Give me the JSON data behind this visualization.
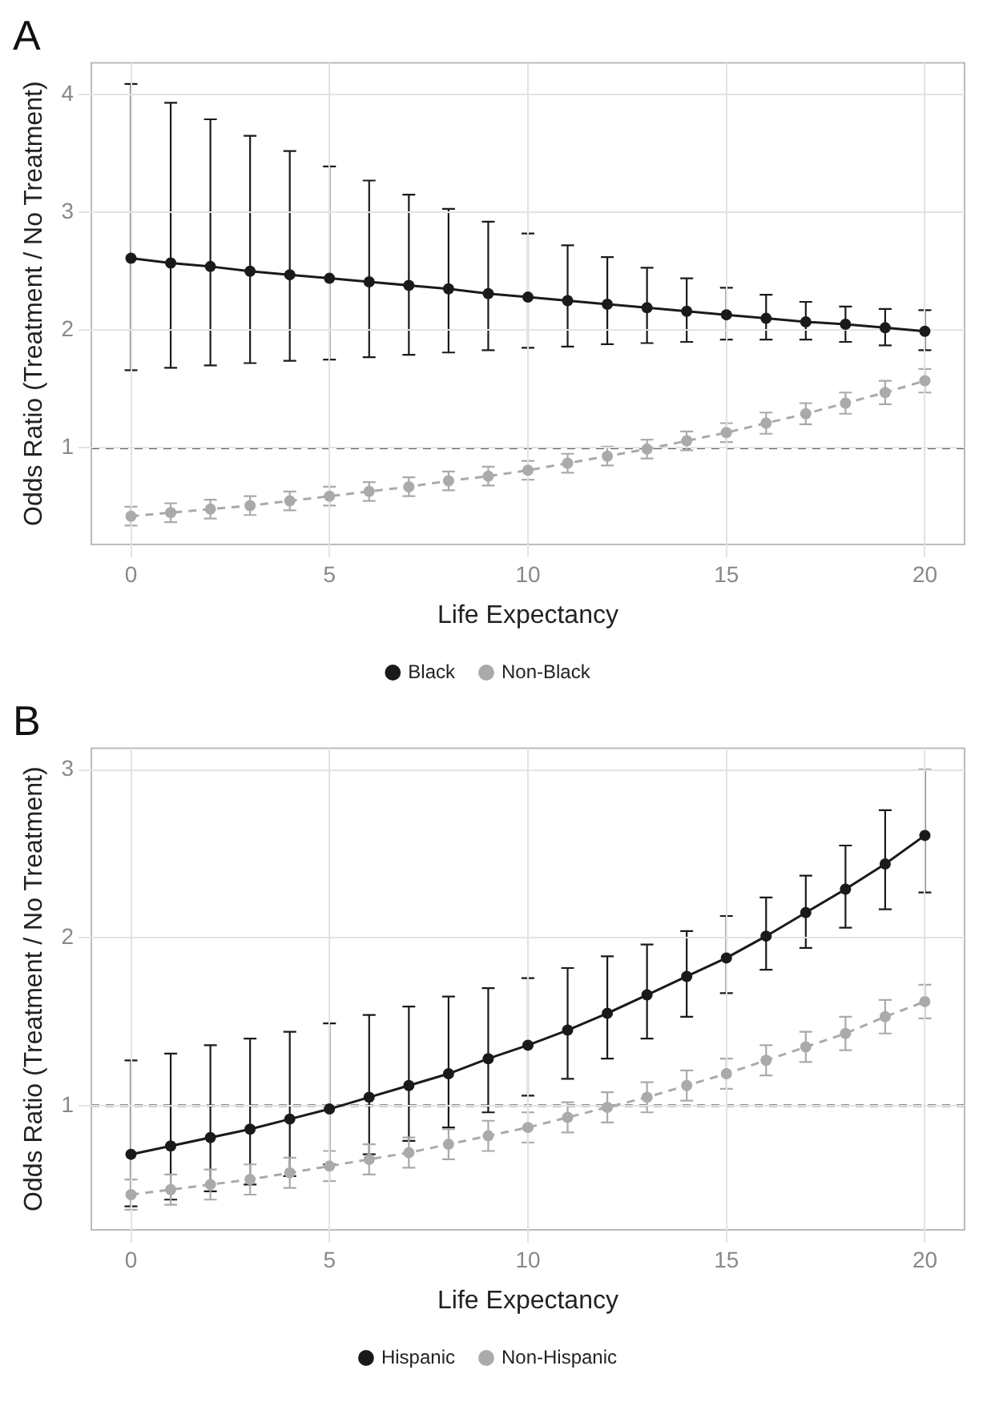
{
  "chart_data": [
    {
      "type": "line",
      "title": "A",
      "xlabel": "Life Expectancy",
      "ylabel": "Odds Ratio (Treatment / No Treatment)",
      "x": [
        0,
        1,
        2,
        3,
        4,
        5,
        6,
        7,
        8,
        9,
        10,
        11,
        12,
        13,
        14,
        15,
        16,
        17,
        18,
        19,
        20
      ],
      "xlim": [
        -1,
        21
      ],
      "xticks": [
        0,
        5,
        10,
        15,
        20
      ],
      "ylim": [
        0.18,
        4.27
      ],
      "yticks": [
        1,
        2,
        3,
        4
      ],
      "grid": true,
      "legend": "bottom",
      "marker": "circle",
      "ref_lines": [
        {
          "axis": "y",
          "value": 1,
          "color": "#1a1a1a",
          "line_style": "dashed"
        }
      ],
      "series": [
        {
          "name": "Black",
          "color": "#1a1a1a",
          "line_style": "solid",
          "values": [
            2.61,
            2.57,
            2.54,
            2.5,
            2.47,
            2.44,
            2.41,
            2.38,
            2.35,
            2.31,
            2.28,
            2.25,
            2.22,
            2.19,
            2.16,
            2.13,
            2.1,
            2.07,
            2.05,
            2.02,
            1.99
          ],
          "errors": [
            [
              1.66,
              4.09
            ],
            [
              1.68,
              3.93
            ],
            [
              1.7,
              3.79
            ],
            [
              1.72,
              3.65
            ],
            [
              1.74,
              3.52
            ],
            [
              1.75,
              3.39
            ],
            [
              1.77,
              3.27
            ],
            [
              1.79,
              3.15
            ],
            [
              1.81,
              3.03
            ],
            [
              1.83,
              2.92
            ],
            [
              1.85,
              2.82
            ],
            [
              1.86,
              2.72
            ],
            [
              1.88,
              2.62
            ],
            [
              1.89,
              2.53
            ],
            [
              1.9,
              2.44
            ],
            [
              1.92,
              2.36
            ],
            [
              1.92,
              2.3
            ],
            [
              1.92,
              2.24
            ],
            [
              1.9,
              2.2
            ],
            [
              1.87,
              2.18
            ],
            [
              1.83,
              2.17
            ]
          ]
        },
        {
          "name": "Non-Black",
          "color": "#aaaaaa",
          "line_style": "dashed",
          "values": [
            0.42,
            0.45,
            0.48,
            0.51,
            0.55,
            0.59,
            0.63,
            0.67,
            0.72,
            0.76,
            0.81,
            0.87,
            0.93,
            0.99,
            1.06,
            1.13,
            1.21,
            1.29,
            1.38,
            1.47,
            1.57
          ],
          "errors": [
            0.08,
            0.08,
            0.08,
            0.08,
            0.08,
            0.08,
            0.08,
            0.08,
            0.08,
            0.08,
            0.08,
            0.08,
            0.08,
            0.08,
            0.08,
            0.08,
            0.09,
            0.09,
            0.09,
            0.1,
            0.1
          ]
        }
      ]
    },
    {
      "type": "line",
      "title": "B",
      "xlabel": "Life Expectancy",
      "ylabel": "Odds Ratio (Treatment / No Treatment)",
      "x": [
        0,
        1,
        2,
        3,
        4,
        5,
        6,
        7,
        8,
        9,
        10,
        11,
        12,
        13,
        14,
        15,
        16,
        17,
        18,
        19,
        20
      ],
      "xlim": [
        -1,
        21
      ],
      "xticks": [
        0,
        5,
        10,
        15,
        20
      ],
      "ylim": [
        0.26,
        3.13
      ],
      "yticks": [
        1,
        2,
        3
      ],
      "grid": true,
      "legend": "bottom",
      "marker": "circle",
      "ref_lines": [
        {
          "axis": "y",
          "value": 1,
          "color": "#1a1a1a",
          "line_style": "dashed"
        }
      ],
      "series": [
        {
          "name": "Hispanic",
          "color": "#1a1a1a",
          "line_style": "solid",
          "values": [
            0.71,
            0.76,
            0.81,
            0.86,
            0.92,
            0.98,
            1.05,
            1.12,
            1.19,
            1.28,
            1.36,
            1.45,
            1.55,
            1.66,
            1.77,
            1.88,
            2.01,
            2.15,
            2.29,
            2.44,
            2.61
          ],
          "errors": [
            [
              0.4,
              1.27
            ],
            [
              0.44,
              1.31
            ],
            [
              0.49,
              1.36
            ],
            [
              0.53,
              1.4
            ],
            [
              0.58,
              1.44
            ],
            [
              0.65,
              1.49
            ],
            [
              0.71,
              1.54
            ],
            [
              0.79,
              1.59
            ],
            [
              0.87,
              1.65
            ],
            [
              0.96,
              1.7
            ],
            [
              1.06,
              1.76
            ],
            [
              1.16,
              1.82
            ],
            [
              1.28,
              1.89
            ],
            [
              1.4,
              1.96
            ],
            [
              1.53,
              2.04
            ],
            [
              1.67,
              2.13
            ],
            [
              1.81,
              2.24
            ],
            [
              1.94,
              2.37
            ],
            [
              2.06,
              2.55
            ],
            [
              2.17,
              2.76
            ],
            [
              2.27,
              3.0
            ]
          ]
        },
        {
          "name": "Non-Hispanic",
          "color": "#aaaaaa",
          "line_style": "dashed",
          "values": [
            0.47,
            0.5,
            0.53,
            0.56,
            0.6,
            0.64,
            0.68,
            0.72,
            0.77,
            0.82,
            0.87,
            0.93,
            0.99,
            1.05,
            1.12,
            1.19,
            1.27,
            1.35,
            1.43,
            1.53,
            1.62
          ],
          "errors": [
            0.09,
            0.09,
            0.09,
            0.09,
            0.09,
            0.09,
            0.09,
            0.09,
            0.09,
            0.09,
            0.09,
            0.09,
            0.09,
            0.09,
            0.09,
            0.09,
            0.09,
            0.09,
            0.1,
            0.1,
            0.1
          ]
        }
      ]
    }
  ]
}
